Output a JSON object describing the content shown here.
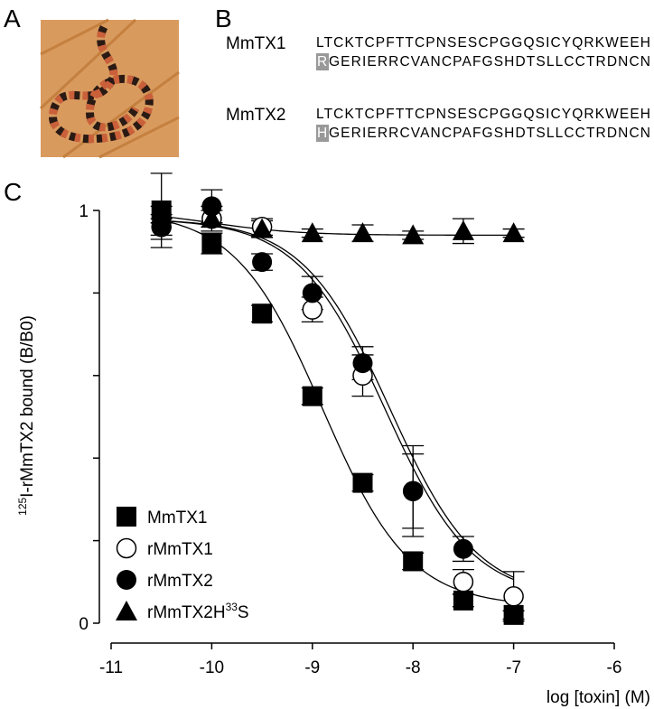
{
  "panels": {
    "a": "A",
    "b": "B",
    "c": "C"
  },
  "sequences": [
    {
      "name": "MmTX1",
      "line1": "LTCKTCPFTTCPNSESCPGGQSICYQRKWEEH",
      "highlight": "R",
      "line2": "GERIERRCVANCPAFGSHDTSLLCCTRDNCN"
    },
    {
      "name": "MmTX2",
      "line1": "LTCKTCPFTTCPNSESCPGGQSICYQRKWEEH",
      "highlight": "H",
      "line2": "GERIERRCVANCPAFGSHDTSLLCCTRDNCN"
    }
  ],
  "chart_data": {
    "type": "scatter",
    "x_label": "log [toxin] (M)",
    "y_label_sup": "125",
    "y_label": "I-rMmTX2 bound (B/B0)",
    "x": [
      -10.5,
      -10,
      -9.5,
      -9,
      -8.5,
      -8,
      -7.5,
      -7
    ],
    "xlim": [
      -11,
      -6
    ],
    "xticks": [
      -11,
      -10,
      -9,
      -8,
      -7,
      -6
    ],
    "ylim": [
      0,
      1
    ],
    "yticks": [
      0,
      1
    ],
    "yminor_ticks": [
      0.2,
      0.4,
      0.6,
      0.8
    ],
    "series": [
      {
        "name": "MmTX1",
        "marker": "square",
        "color": "#000000",
        "values": [
          1.0,
          0.92,
          0.75,
          0.55,
          0.34,
          0.15,
          0.055,
          0.02
        ],
        "errors": [
          0.09,
          0.025,
          0.02,
          0.02,
          0.02,
          0.02,
          0.015,
          0.01
        ],
        "fit": {
          "top": 1.0,
          "bottom": 0.04,
          "log_ec50": -8.9,
          "hill": 1
        }
      },
      {
        "name": "rMmTX1",
        "marker": "open-circle",
        "color": "#000000",
        "values": [
          0.96,
          0.98,
          0.96,
          0.76,
          0.6,
          0.32,
          0.1,
          0.065
        ],
        "errors": [
          0.02,
          0.03,
          0.02,
          0.03,
          0.05,
          0.11,
          0.03,
          0.06
        ],
        "fit": {
          "top": 0.98,
          "bottom": 0.06,
          "log_ec50": -8.28,
          "hill": 1
        }
      },
      {
        "name": "rMmTX2",
        "marker": "circle",
        "color": "#000000",
        "values": [
          0.96,
          1.01,
          0.875,
          0.8,
          0.63,
          0.32,
          0.18,
          null
        ],
        "errors": [
          0.03,
          0.04,
          0.02,
          0.04,
          0.04,
          0.09,
          0.03,
          null
        ],
        "fit": {
          "top": 0.98,
          "bottom": 0.06,
          "log_ec50": -8.23,
          "hill": 1
        }
      },
      {
        "name": "rMmTX2H",
        "name_sup": "33",
        "name_end": "S",
        "marker": "triangle",
        "color": "#000000",
        "values": [
          0.99,
          0.98,
          0.955,
          0.945,
          0.945,
          0.94,
          0.95,
          0.945
        ],
        "errors": [
          0.02,
          0.02,
          0.02,
          0.01,
          0.02,
          0.01,
          0.03,
          0.01
        ],
        "fit": {
          "top": 1.0,
          "bottom": 0.94,
          "log_ec50": -10,
          "hill": 1
        }
      }
    ]
  }
}
